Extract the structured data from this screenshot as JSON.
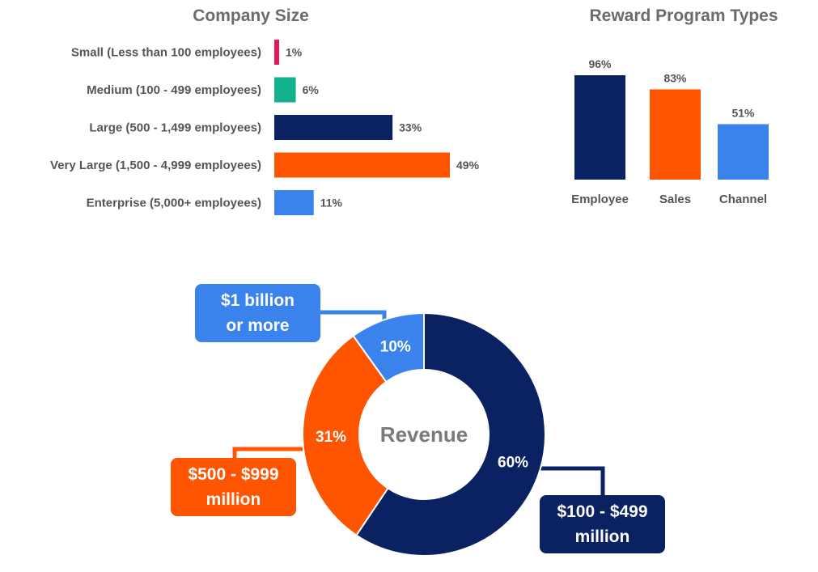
{
  "chart_data": [
    {
      "type": "bar",
      "orientation": "horizontal",
      "title": "Company Size",
      "categories": [
        "Small (Less than 100 employees)",
        "Medium (100 - 499 employees)",
        "Large (500 - 1,499 employees)",
        "Very Large (1,500 - 4,999 employees)",
        "Enterprise (5,000+ employees)"
      ],
      "values": [
        1,
        6,
        33,
        49,
        11
      ],
      "value_labels": [
        "1%",
        "6%",
        "33%",
        "49%",
        "11%"
      ],
      "colors": [
        "#e6195a",
        "#12b28f",
        "#0a2262",
        "#ff5400",
        "#3a83ec"
      ],
      "xlim": [
        0,
        50
      ],
      "grid": false,
      "legend": "none"
    },
    {
      "type": "bar",
      "orientation": "vertical",
      "title": "Reward Program Types",
      "categories": [
        "Employee",
        "Sales",
        "Channel"
      ],
      "values": [
        96,
        83,
        51
      ],
      "value_labels": [
        "96%",
        "83%",
        "51%"
      ],
      "colors": [
        "#0a2262",
        "#ff5400",
        "#3a83ec"
      ],
      "ylim": [
        0,
        100
      ],
      "grid": false,
      "legend": "none"
    },
    {
      "type": "pie",
      "variant": "donut",
      "center_label": "Revenue",
      "slices": [
        {
          "label": "$100 - $499\nmillion",
          "value": 60,
          "value_label": "60%",
          "color": "#0a2262"
        },
        {
          "label": "$500 - $999\nmillion",
          "value": 31,
          "value_label": "31%",
          "color": "#ff5400"
        },
        {
          "label": "$1 billion\nor more",
          "value": 10,
          "value_label": "10%",
          "color": "#3a83ec"
        }
      ],
      "legend": "callouts"
    }
  ]
}
